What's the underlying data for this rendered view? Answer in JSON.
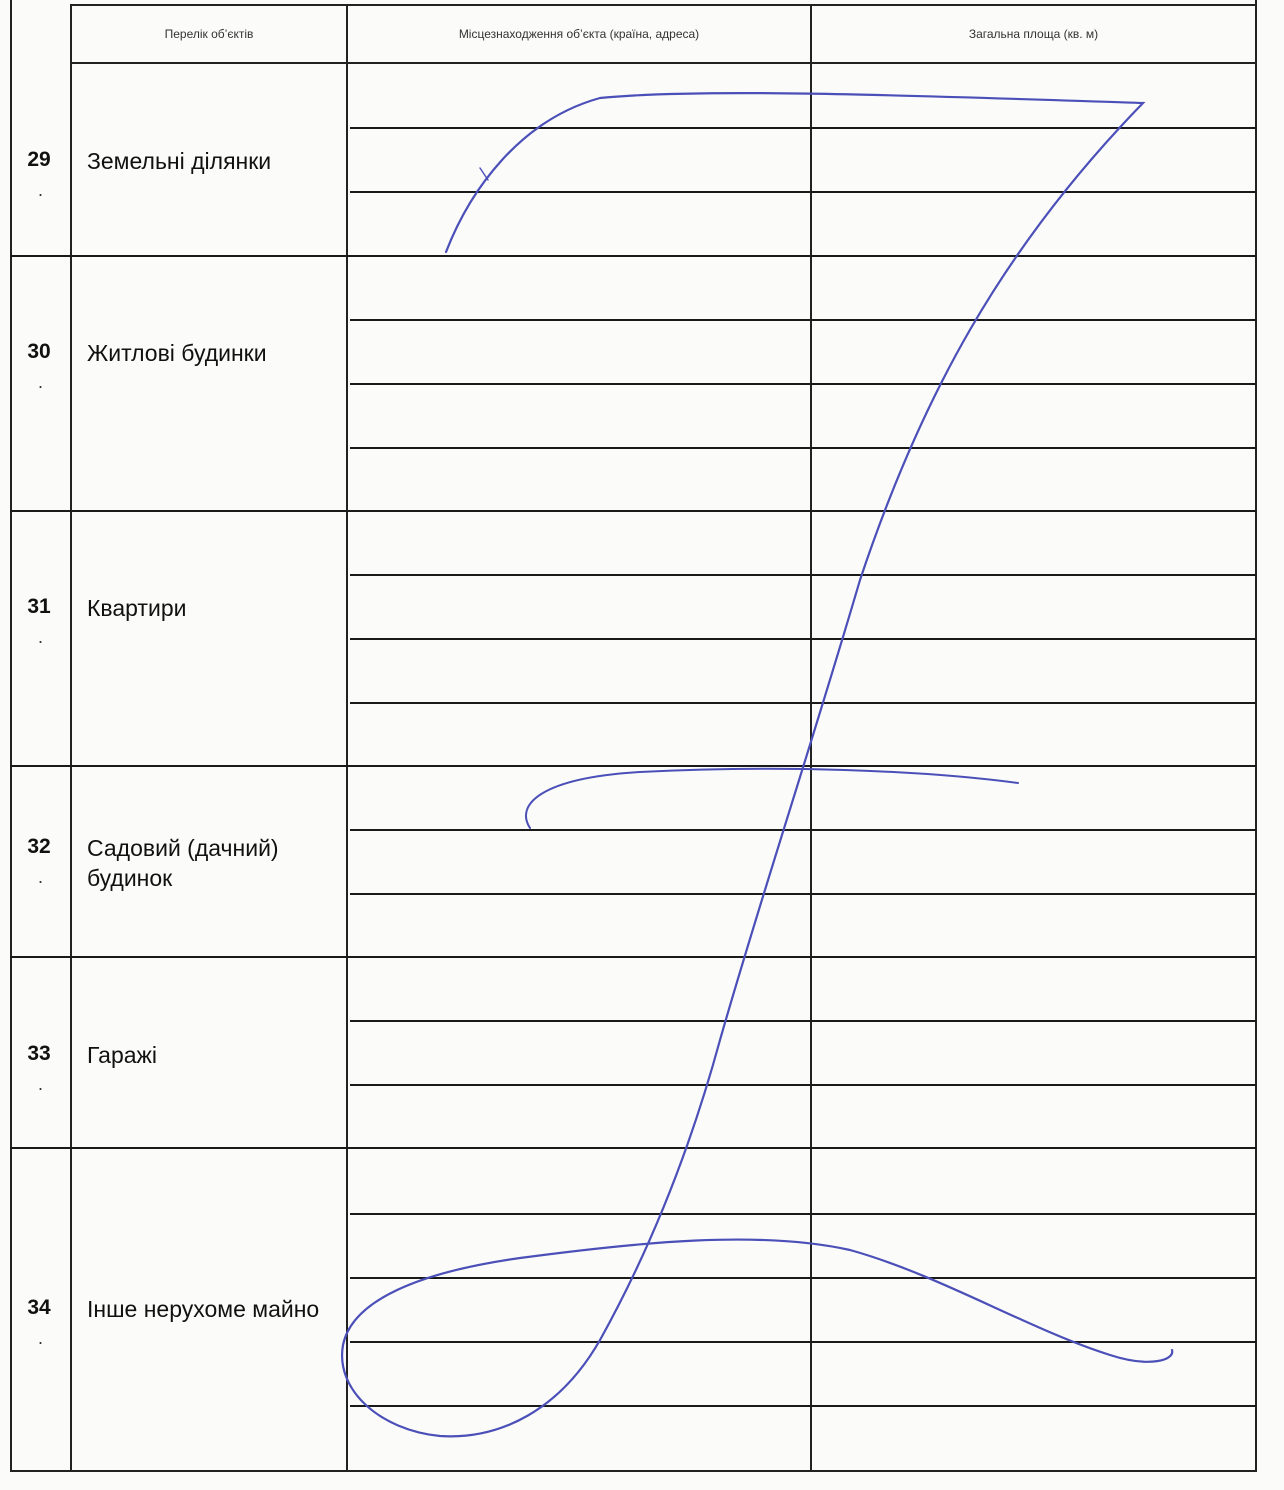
{
  "header": {
    "col_objects": "Перелік об’єктів",
    "col_location": "Місцезнаходження об’єкта (країна, адреса)",
    "col_area": "Загальна площа (кв. м)"
  },
  "rows": [
    {
      "number": "29",
      "label": "Земельні ділянки",
      "dot": "."
    },
    {
      "number": "30",
      "label": "Житлові будинки",
      "dot": "."
    },
    {
      "number": "31",
      "label": "Квартири",
      "dot": "."
    },
    {
      "number": "32",
      "label": "Садовий (дачний) будинок",
      "dot": "."
    },
    {
      "number": "33",
      "label": "Гаражі",
      "dot": "."
    },
    {
      "number": "34",
      "label": "Інше нерухоме майно",
      "dot": "."
    }
  ],
  "signature": {
    "ink_color": "#4b4fb8"
  }
}
